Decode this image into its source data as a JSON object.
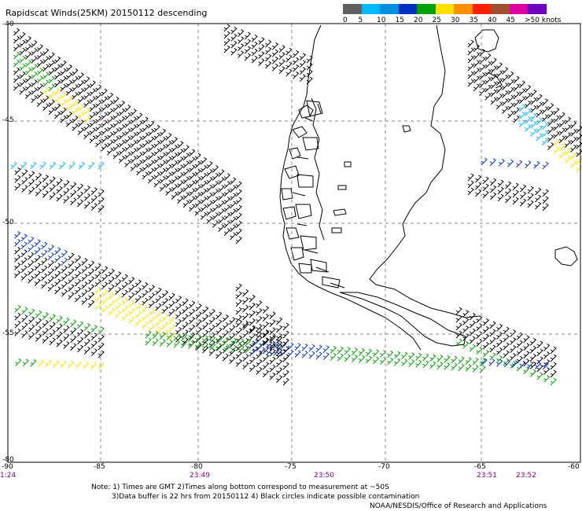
{
  "title": "Rapidscat Winds(25KM) 20150112 descending",
  "colorbar": {
    "labels": [
      "0",
      "5",
      "10",
      "15",
      "20",
      "25",
      "30",
      "35",
      "40",
      "45",
      ">50 knots"
    ],
    "colors": [
      "#606060",
      "#00b8ff",
      "#0090e0",
      "#0030c0",
      "#00a000",
      "#ffe000",
      "#ff9000",
      "#ff2000",
      "#a05030",
      "#e000a0",
      "#7000c0"
    ]
  },
  "axes": {
    "lon_labels": [
      "-90",
      "-85",
      "-80",
      "-75",
      "-70",
      "-65",
      "-60"
    ],
    "lat_labels": [
      "-40",
      "-45",
      "-50",
      "-55",
      "-80"
    ]
  },
  "time_labels": [
    "1:24",
    "23:49",
    "23:50",
    "23:51",
    "23:52"
  ],
  "notes": {
    "line1": "Note: 1) Times are GMT 2)Times along bottom correspond to measurement at ~50S",
    "line2": "3)Data buffer is 22 hrs from 20150112 4) Black circles indicate possible contamination",
    "line3": "NOAA/NESDIS/Office of Research and Applications"
  }
}
